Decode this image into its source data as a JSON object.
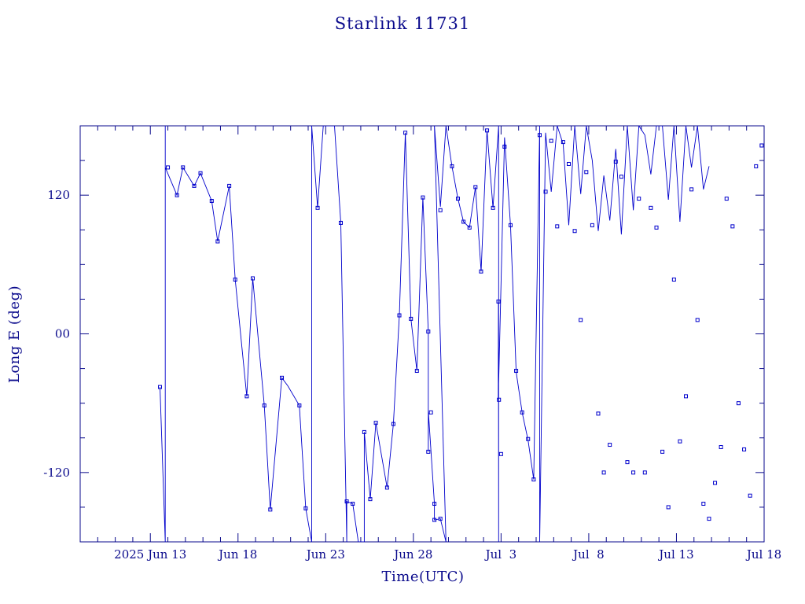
{
  "chart_data": {
    "type": "line",
    "title": "Starlink 11731",
    "xlabel": "Time(UTC)",
    "ylabel": "Long E (deg)",
    "x_unit": "days",
    "x_ticks": [
      {
        "x": 12.0,
        "label": "2025 Jun 13"
      },
      {
        "x": 17.0,
        "label": "Jun 18"
      },
      {
        "x": 22.0,
        "label": "Jun 23"
      },
      {
        "x": 27.0,
        "label": "Jun 28"
      },
      {
        "x": 32.0,
        "label": "Jul  3"
      },
      {
        "x": 37.0,
        "label": "Jul  8"
      },
      {
        "x": 42.0,
        "label": "Jul 13"
      },
      {
        "x": 47.0,
        "label": "Jul 18"
      }
    ],
    "y_ticks": [
      {
        "y": 120,
        "label": "120"
      },
      {
        "y": 0,
        "label": "00"
      },
      {
        "y": -120,
        "label": "-120"
      }
    ],
    "xlim": [
      8.0,
      47.0
    ],
    "ylim": [
      -180,
      180
    ],
    "colors": {
      "axes": "#0a0a8c",
      "series": "#0000cc",
      "marker": "#0000cc"
    },
    "series": [
      {
        "values": [
          [
            12.55,
            -46
          ],
          [
            12.85,
            -180
          ],
          [
            12.85,
            180
          ],
          [
            12.85,
            144
          ],
          [
            13.52,
            120
          ],
          [
            13.86,
            144
          ],
          [
            14.5,
            128
          ],
          [
            14.86,
            139
          ],
          [
            15.5,
            115
          ],
          [
            15.84,
            80
          ],
          [
            16.5,
            128
          ],
          [
            16.84,
            47
          ],
          [
            17.5,
            -54
          ],
          [
            17.84,
            48
          ],
          [
            18.5,
            -62
          ],
          [
            18.84,
            -152
          ],
          [
            19.5,
            -38
          ],
          [
            19.84,
            -45
          ],
          [
            20.5,
            -62
          ],
          [
            20.86,
            -151
          ],
          [
            21.2,
            -180
          ],
          [
            21.2,
            180
          ],
          [
            21.54,
            109
          ],
          [
            21.86,
            180
          ],
          [
            22.5,
            180
          ],
          [
            22.86,
            96
          ],
          [
            23.2,
            -180
          ],
          [
            23.2,
            -145
          ],
          [
            23.54,
            -147
          ],
          [
            23.86,
            -180
          ],
          [
            24.2,
            -180
          ],
          [
            24.2,
            -85
          ],
          [
            24.54,
            -143
          ],
          [
            24.86,
            -77
          ],
          [
            25.5,
            -133
          ],
          [
            25.86,
            -78
          ],
          [
            26.2,
            16
          ],
          [
            26.54,
            174
          ],
          [
            26.86,
            13
          ],
          [
            27.2,
            -32
          ],
          [
            27.54,
            118
          ],
          [
            27.85,
            2
          ],
          [
            27.85,
            -102
          ],
          [
            27.86,
            -68
          ],
          [
            28.2,
            -147
          ],
          [
            28.2,
            -161
          ],
          [
            28.54,
            -160
          ],
          [
            28.86,
            -180
          ],
          [
            28.2,
            180
          ],
          [
            28.54,
            110
          ],
          [
            28.86,
            180
          ],
          [
            29.2,
            145
          ],
          [
            29.54,
            117
          ],
          [
            29.86,
            97
          ],
          [
            30.2,
            92
          ],
          [
            30.54,
            127
          ],
          [
            30.86,
            54
          ],
          [
            31.2,
            176
          ],
          [
            31.54,
            109
          ],
          [
            31.86,
            180
          ],
          [
            31.86,
            -180
          ],
          [
            31.85,
            28
          ],
          [
            31.84,
            -57
          ],
          [
            32.2,
            170
          ],
          [
            32.54,
            94
          ],
          [
            32.86,
            -33
          ],
          [
            33.2,
            -68
          ],
          [
            33.54,
            -92
          ],
          [
            33.86,
            -126
          ],
          [
            34.2,
            180
          ],
          [
            34.2,
            -180
          ],
          [
            34.54,
            174
          ],
          [
            34.86,
            123
          ],
          [
            35.2,
            180
          ],
          [
            35.54,
            164
          ],
          [
            35.86,
            94
          ],
          [
            36.2,
            180
          ],
          [
            36.54,
            121
          ],
          [
            36.86,
            180
          ],
          [
            37.2,
            150
          ],
          [
            37.54,
            89
          ],
          [
            37.86,
            137
          ],
          [
            38.2,
            98
          ],
          [
            38.54,
            160
          ],
          [
            38.86,
            86
          ],
          [
            39.2,
            180
          ],
          [
            39.54,
            107
          ],
          [
            39.86,
            180
          ],
          [
            40.2,
            172
          ],
          [
            40.54,
            138
          ],
          [
            40.86,
            180
          ],
          [
            41.2,
            180
          ],
          [
            41.54,
            116
          ],
          [
            41.86,
            180
          ],
          [
            42.2,
            97
          ],
          [
            42.54,
            180
          ],
          [
            42.86,
            144
          ],
          [
            43.2,
            180
          ],
          [
            43.54,
            125
          ],
          [
            43.86,
            145
          ]
        ]
      }
    ],
    "markers": [
      [
        12.55,
        -46
      ],
      [
        13.0,
        144
      ],
      [
        13.52,
        120
      ],
      [
        13.86,
        144
      ],
      [
        14.5,
        128
      ],
      [
        14.86,
        139
      ],
      [
        15.5,
        115
      ],
      [
        15.84,
        80
      ],
      [
        16.5,
        128
      ],
      [
        16.84,
        47
      ],
      [
        17.5,
        -54
      ],
      [
        17.84,
        48
      ],
      [
        18.5,
        -62
      ],
      [
        18.84,
        -152
      ],
      [
        19.5,
        -38
      ],
      [
        20.5,
        -62
      ],
      [
        20.86,
        -151
      ],
      [
        21.54,
        109
      ],
      [
        22.86,
        96
      ],
      [
        23.2,
        -145
      ],
      [
        23.54,
        -147
      ],
      [
        24.2,
        -85
      ],
      [
        24.54,
        -143
      ],
      [
        24.86,
        -77
      ],
      [
        25.5,
        -133
      ],
      [
        25.86,
        -78
      ],
      [
        26.2,
        16
      ],
      [
        26.54,
        174
      ],
      [
        26.86,
        13
      ],
      [
        27.2,
        -32
      ],
      [
        27.54,
        118
      ],
      [
        27.85,
        2
      ],
      [
        27.85,
        -102
      ],
      [
        28.0,
        -68
      ],
      [
        28.2,
        -147
      ],
      [
        28.2,
        -161
      ],
      [
        28.54,
        -160
      ],
      [
        28.54,
        107
      ],
      [
        29.2,
        145
      ],
      [
        29.54,
        117
      ],
      [
        29.86,
        97
      ],
      [
        30.2,
        92
      ],
      [
        30.54,
        127
      ],
      [
        30.86,
        54
      ],
      [
        31.2,
        176
      ],
      [
        31.54,
        109
      ],
      [
        31.85,
        28
      ],
      [
        31.88,
        -57
      ],
      [
        32.0,
        -104
      ],
      [
        32.2,
        162
      ],
      [
        32.54,
        94
      ],
      [
        32.86,
        -32
      ],
      [
        33.2,
        -68
      ],
      [
        33.54,
        -91
      ],
      [
        33.86,
        -126
      ],
      [
        34.2,
        172
      ],
      [
        34.54,
        123
      ],
      [
        34.86,
        167
      ],
      [
        35.2,
        93
      ],
      [
        35.54,
        166
      ],
      [
        35.86,
        147
      ],
      [
        36.2,
        89
      ],
      [
        36.54,
        12
      ],
      [
        36.86,
        140
      ],
      [
        37.2,
        94
      ],
      [
        37.54,
        -69
      ],
      [
        37.86,
        -120
      ],
      [
        38.2,
        -96
      ],
      [
        38.54,
        149
      ],
      [
        38.86,
        136
      ],
      [
        39.2,
        -111
      ],
      [
        39.54,
        -120
      ],
      [
        39.86,
        117
      ],
      [
        40.2,
        -120
      ],
      [
        40.54,
        109
      ],
      [
        40.86,
        92
      ],
      [
        41.2,
        -102
      ],
      [
        41.54,
        -150
      ],
      [
        41.86,
        47
      ],
      [
        42.2,
        -93
      ],
      [
        42.54,
        -54
      ],
      [
        42.86,
        125
      ],
      [
        43.2,
        12
      ],
      [
        43.54,
        -147
      ],
      [
        43.86,
        -160
      ],
      [
        44.2,
        -129
      ],
      [
        44.54,
        -98
      ],
      [
        44.86,
        117
      ],
      [
        45.2,
        93
      ],
      [
        45.54,
        -60
      ],
      [
        45.86,
        -100
      ],
      [
        46.2,
        -140
      ],
      [
        46.54,
        145
      ],
      [
        46.86,
        163
      ],
      [
        47.2,
        130
      ]
    ]
  }
}
